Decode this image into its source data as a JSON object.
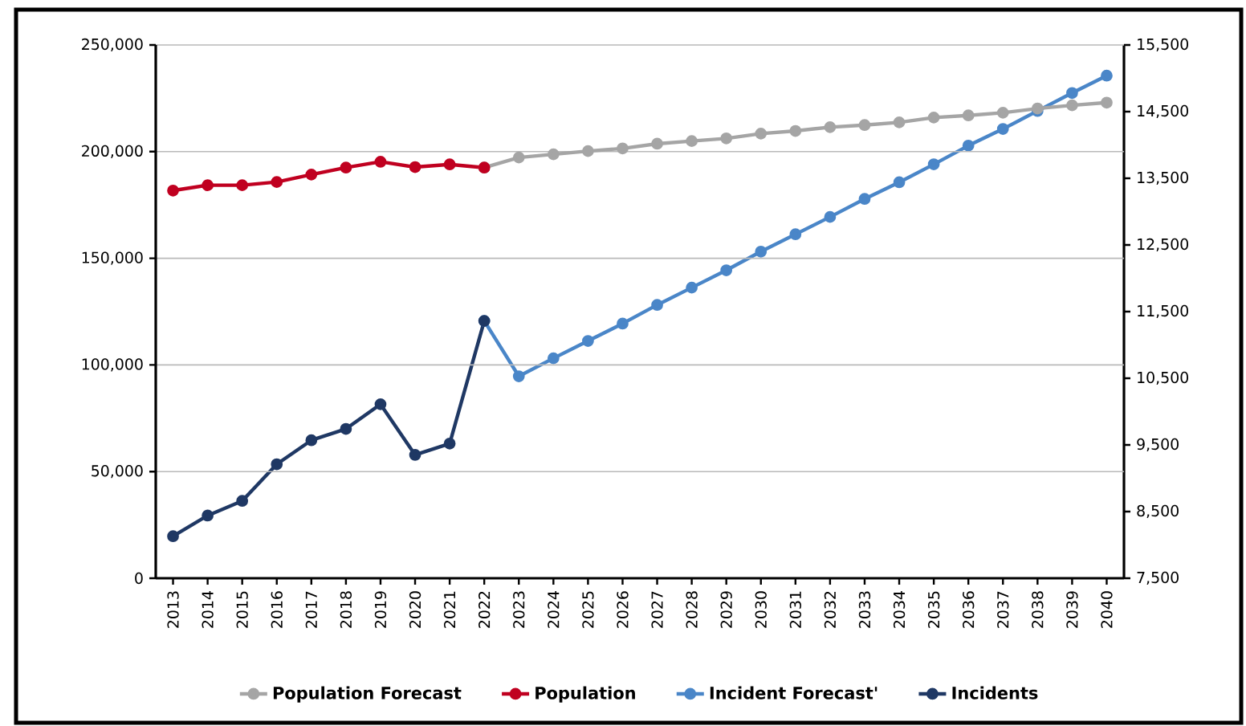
{
  "chart_data": {
    "type": "line",
    "categories": [
      "2013",
      "2014",
      "2015",
      "2016",
      "2017",
      "2018",
      "2019",
      "2020",
      "2021",
      "2022",
      "2023",
      "2024",
      "2025",
      "2026",
      "2027",
      "2028",
      "2029",
      "2030",
      "2031",
      "2032",
      "2033",
      "2034",
      "2035",
      "2036",
      "2037",
      "2038",
      "2039",
      "2040"
    ],
    "series": [
      {
        "name": "Population Forecast",
        "color": "#a5a5a5",
        "values": [
          null,
          null,
          null,
          null,
          null,
          null,
          null,
          null,
          null,
          192500,
          197250,
          198750,
          200250,
          201500,
          203700,
          204950,
          206200,
          208450,
          209710,
          211460,
          212460,
          213710,
          215960,
          216970,
          218220,
          220220,
          221720,
          222970
        ]
      },
      {
        "name": "Population",
        "color": "#c00020",
        "values": [
          181750,
          184250,
          184250,
          185750,
          189250,
          192500,
          195250,
          192750,
          194000,
          192500,
          null,
          null,
          null,
          null,
          null,
          null,
          null,
          null,
          null,
          null,
          null,
          null,
          null,
          null,
          null,
          null,
          null,
          null
        ]
      },
      {
        "name": "Incident Forecast'",
        "color": "#4a86c8",
        "axis": "y2",
        "values": [
          null,
          null,
          null,
          null,
          null,
          null,
          null,
          null,
          null,
          11360,
          10530,
          10800,
          11060,
          11320,
          11600,
          11860,
          12120,
          12400,
          12660,
          12920,
          13190,
          13440,
          13710,
          13990,
          14240,
          14510,
          14780,
          15040
        ]
      },
      {
        "name": "Incidents",
        "color": "#1f3864",
        "axis": "y2",
        "values": [
          8130,
          8440,
          8660,
          9210,
          9570,
          9740,
          10110,
          9350,
          9520,
          11360,
          null,
          null,
          null,
          null,
          null,
          null,
          null,
          null,
          null,
          null,
          null,
          null,
          null,
          null,
          null,
          null,
          null,
          null
        ]
      }
    ],
    "ylim": [
      0,
      250000
    ],
    "yticks": [
      0,
      {
        "value": 50000,
        "label": "50,000"
      },
      {
        "value": 100000,
        "label": "100,000"
      },
      {
        "value": 150000,
        "label": "150,000"
      },
      {
        "value": 200000,
        "label": "200,000"
      },
      {
        "value": 250000,
        "label": "250,000"
      }
    ],
    "y2lim": [
      7500,
      15500
    ],
    "y2ticks": [
      {
        "value": 7500,
        "label": "7,500"
      },
      {
        "value": 8500,
        "label": "8,500"
      },
      {
        "value": 9500,
        "label": "9,500"
      },
      {
        "value": 10500,
        "label": "10,500"
      },
      {
        "value": 11500,
        "label": "11,500"
      },
      {
        "value": 12500,
        "label": "12,500"
      },
      {
        "value": 13500,
        "label": "13,500"
      },
      {
        "value": 14500,
        "label": "14,500"
      },
      {
        "value": 15500,
        "label": "15,500"
      }
    ],
    "grid": "y",
    "legend": "bottom",
    "marker": "circle",
    "line_style": "solid"
  }
}
